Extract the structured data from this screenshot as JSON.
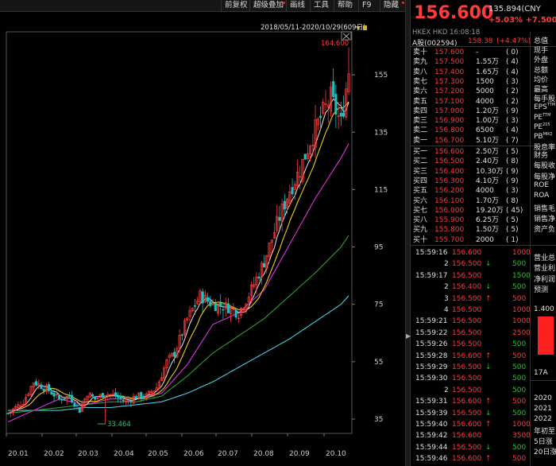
{
  "toolbar": {
    "items": [
      "前复权",
      "超级叠加",
      "画线",
      "工具",
      "帮助",
      "F9",
      "隐藏"
    ]
  },
  "chart": {
    "range_label": "2018/05/11-2020/10/29(609日)",
    "high_label": "164.600",
    "low_label": "33.464",
    "colors": {
      "up": "#ff3b3b",
      "down": "#19c2c2",
      "ma5": "#e8e8e8",
      "ma10": "#f0d000",
      "ma20": "#e030e0",
      "ma60": "#2ca02c",
      "ma120": "#40d0e0"
    }
  },
  "chart_data": {
    "type": "candlestick",
    "x_tick_labels": [
      "20.01",
      "20.02",
      "20.03",
      "20.04",
      "20.05",
      "20.06",
      "20.07",
      "20.08",
      "20.09",
      "20.10"
    ],
    "y_tick_labels": [
      "155",
      "135",
      "115",
      "95",
      "75",
      "55",
      "35"
    ],
    "ylim": [
      30,
      170
    ],
    "high_annotation": 164.6,
    "low_annotation": 33.464,
    "close_path": [
      [
        0,
        37
      ],
      [
        6,
        41
      ],
      [
        10,
        48
      ],
      [
        16,
        45
      ],
      [
        20,
        42
      ],
      [
        24,
        43
      ],
      [
        28,
        38
      ],
      [
        31,
        44
      ],
      [
        34,
        42
      ],
      [
        38,
        44
      ],
      [
        42,
        43
      ],
      [
        46,
        41
      ],
      [
        50,
        43
      ],
      [
        54,
        43
      ],
      [
        58,
        46
      ],
      [
        62,
        55
      ],
      [
        65,
        58
      ],
      [
        70,
        70
      ],
      [
        75,
        78
      ],
      [
        80,
        75
      ],
      [
        86,
        74
      ],
      [
        90,
        72
      ],
      [
        95,
        80
      ],
      [
        100,
        90
      ],
      [
        105,
        103
      ],
      [
        110,
        115
      ],
      [
        114,
        122
      ],
      [
        118,
        132
      ],
      [
        122,
        140
      ],
      [
        126,
        147
      ],
      [
        130,
        138
      ],
      [
        133,
        156.6
      ]
    ],
    "ma10_path": [
      [
        0,
        36
      ],
      [
        10,
        42
      ],
      [
        20,
        44
      ],
      [
        30,
        40
      ],
      [
        40,
        43
      ],
      [
        50,
        42
      ],
      [
        60,
        47
      ],
      [
        70,
        62
      ],
      [
        80,
        75
      ],
      [
        90,
        74
      ],
      [
        100,
        85
      ],
      [
        110,
        106
      ],
      [
        120,
        125
      ],
      [
        130,
        139
      ],
      [
        133,
        144
      ]
    ],
    "ma20_path": [
      [
        0,
        34
      ],
      [
        10,
        38
      ],
      [
        20,
        42
      ],
      [
        30,
        40
      ],
      [
        40,
        42
      ],
      [
        50,
        42
      ],
      [
        60,
        44
      ],
      [
        70,
        54
      ],
      [
        80,
        68
      ],
      [
        90,
        72
      ],
      [
        100,
        80
      ],
      [
        110,
        96
      ],
      [
        120,
        112
      ],
      [
        130,
        126
      ],
      [
        133,
        131
      ]
    ],
    "ma60_path": [
      [
        0,
        37
      ],
      [
        10,
        38
      ],
      [
        20,
        39
      ],
      [
        30,
        40
      ],
      [
        40,
        41
      ],
      [
        50,
        41
      ],
      [
        60,
        43
      ],
      [
        70,
        50
      ],
      [
        80,
        58
      ],
      [
        90,
        64
      ],
      [
        100,
        70
      ],
      [
        110,
        78
      ],
      [
        120,
        86
      ],
      [
        130,
        95
      ],
      [
        133,
        99
      ]
    ],
    "ma120_path": [
      [
        0,
        38
      ],
      [
        10,
        38
      ],
      [
        20,
        38
      ],
      [
        30,
        39
      ],
      [
        40,
        39
      ],
      [
        50,
        40
      ],
      [
        60,
        41
      ],
      [
        70,
        44
      ],
      [
        80,
        48
      ],
      [
        90,
        53
      ],
      [
        100,
        58
      ],
      [
        110,
        63
      ],
      [
        120,
        69
      ],
      [
        130,
        75
      ],
      [
        133,
        78
      ]
    ]
  },
  "quote": {
    "price": "156.600",
    "prev_value": "135.894(CNY",
    "change": "+5.03%  +7.500",
    "exchange_line": "HKEX  HKD  16:08:18",
    "a_share_label": "A股(002594)",
    "a_share_price": "158.38",
    "a_share_change": "(+4.47%)",
    "asks": [
      {
        "label": "卖十",
        "price": "157.600",
        "vol": "-",
        "cnt": "( 0)"
      },
      {
        "label": "卖九",
        "price": "157.500",
        "vol": "1.55万",
        "cnt": "( 4)"
      },
      {
        "label": "卖八",
        "price": "157.400",
        "vol": "1.65万",
        "cnt": "( 4)"
      },
      {
        "label": "卖七",
        "price": "157.300",
        "vol": "1500",
        "cnt": "( 3)"
      },
      {
        "label": "卖六",
        "price": "157.200",
        "vol": "5000",
        "cnt": "( 2)"
      },
      {
        "label": "卖五",
        "price": "157.100",
        "vol": "4000",
        "cnt": "( 2)"
      },
      {
        "label": "卖四",
        "price": "157.000",
        "vol": "1.20万",
        "cnt": "( 9)"
      },
      {
        "label": "卖三",
        "price": "156.900",
        "vol": "1.00万",
        "cnt": "( 3)"
      },
      {
        "label": "卖二",
        "price": "156.800",
        "vol": "6500",
        "cnt": "( 4)"
      },
      {
        "label": "卖一",
        "price": "156.700",
        "vol": "5.10万",
        "cnt": "( 7)"
      }
    ],
    "bids": [
      {
        "label": "买一",
        "price": "156.600",
        "vol": "2.50万",
        "cnt": "( 5)"
      },
      {
        "label": "买二",
        "price": "156.500",
        "vol": "2.40万",
        "cnt": "( 8)"
      },
      {
        "label": "买三",
        "price": "156.400",
        "vol": "10.30万",
        "cnt": "( 9)"
      },
      {
        "label": "买四",
        "price": "156.300",
        "vol": "4.10万",
        "cnt": "( 9)"
      },
      {
        "label": "买五",
        "price": "156.200",
        "vol": "4000",
        "cnt": "( 3)"
      },
      {
        "label": "买六",
        "price": "156.100",
        "vol": "1.70万",
        "cnt": "( 8)"
      },
      {
        "label": "买七",
        "price": "156.000",
        "vol": "19.20万",
        "cnt": "( 45)"
      },
      {
        "label": "买八",
        "price": "155.900",
        "vol": "6.25万",
        "cnt": "( 5)"
      },
      {
        "label": "买九",
        "price": "155.800",
        "vol": "1.50万",
        "cnt": "( 5)"
      },
      {
        "label": "买十",
        "price": "155.700",
        "vol": "2000",
        "cnt": "( 1)"
      }
    ],
    "trades": [
      {
        "time": "15:59:16",
        "price": "156.600",
        "arrow": "",
        "vol": "1000",
        "dir": "up"
      },
      {
        "time": "2",
        "price": "156.500",
        "arrow": "↓",
        "vol": "500",
        "dir": "down"
      },
      {
        "time": "15:59:17",
        "price": "156.500",
        "arrow": "",
        "vol": "1500",
        "dir": "down"
      },
      {
        "time": "2",
        "price": "156.400",
        "arrow": "↓",
        "vol": "500",
        "dir": "down"
      },
      {
        "time": "3",
        "price": "156.500",
        "arrow": "↑",
        "vol": "500",
        "dir": "up"
      },
      {
        "time": "4",
        "price": "156.500",
        "arrow": "",
        "vol": "1000",
        "dir": "up"
      },
      {
        "time": "15:59:21",
        "price": "156.500",
        "arrow": "",
        "vol": "1000",
        "dir": "up"
      },
      {
        "time": "15:59:22",
        "price": "156.500",
        "arrow": "",
        "vol": "2500",
        "dir": "up"
      },
      {
        "time": "15:59:26",
        "price": "156.500",
        "arrow": "",
        "vol": "500",
        "dir": "down"
      },
      {
        "time": "15:59:28",
        "price": "156.600",
        "arrow": "↑",
        "vol": "500",
        "dir": "up"
      },
      {
        "time": "15:59:29",
        "price": "156.500",
        "arrow": "↓",
        "vol": "500",
        "dir": "down"
      },
      {
        "time": "15:59:30",
        "price": "156.500",
        "arrow": "",
        "vol": "500",
        "dir": "down"
      },
      {
        "time": "2",
        "price": "156.500",
        "arrow": "",
        "vol": "500",
        "dir": "down"
      },
      {
        "time": "15:59:31",
        "price": "156.600",
        "arrow": "↑",
        "vol": "500",
        "dir": "up"
      },
      {
        "time": "15:59:39",
        "price": "156.500",
        "arrow": "↓",
        "vol": "500",
        "dir": "down"
      },
      {
        "time": "15:59:40",
        "price": "156.600",
        "arrow": "↑",
        "vol": "1000",
        "dir": "up"
      },
      {
        "time": "15:59:42",
        "price": "156.600",
        "arrow": "",
        "vol": "3500",
        "dir": "up"
      },
      {
        "time": "15:59:44",
        "price": "156.500",
        "arrow": "↓",
        "vol": "500",
        "dir": "down"
      },
      {
        "time": "15:59:46",
        "price": "156.600",
        "arrow": "↑",
        "vol": "500",
        "dir": "up"
      }
    ],
    "right_labels_top": [
      "总值",
      "现手",
      "外盘",
      "总额",
      "均价",
      "最高",
      "每手股",
      "EPS",
      "PE",
      "PE",
      "PB",
      "股息率"
    ],
    "right_labels_top_sup": [
      "",
      "",
      "",
      "",
      "",
      "",
      "",
      "TTM",
      "TTM",
      "205",
      "MRQ",
      ""
    ],
    "right_labels_mid": [
      "财务",
      "每股收",
      "每股净",
      "ROE",
      "ROA",
      "销售毛",
      "销售净",
      "资产负"
    ],
    "right_labels_low": [
      "营业总",
      "营业利",
      "净利润",
      "预测"
    ],
    "right_bar_label": "1.400",
    "right_bar_axis": "17A",
    "right_years": [
      "2020",
      "2021",
      "2022",
      "年初至",
      "5日涨",
      "20日涨"
    ]
  }
}
